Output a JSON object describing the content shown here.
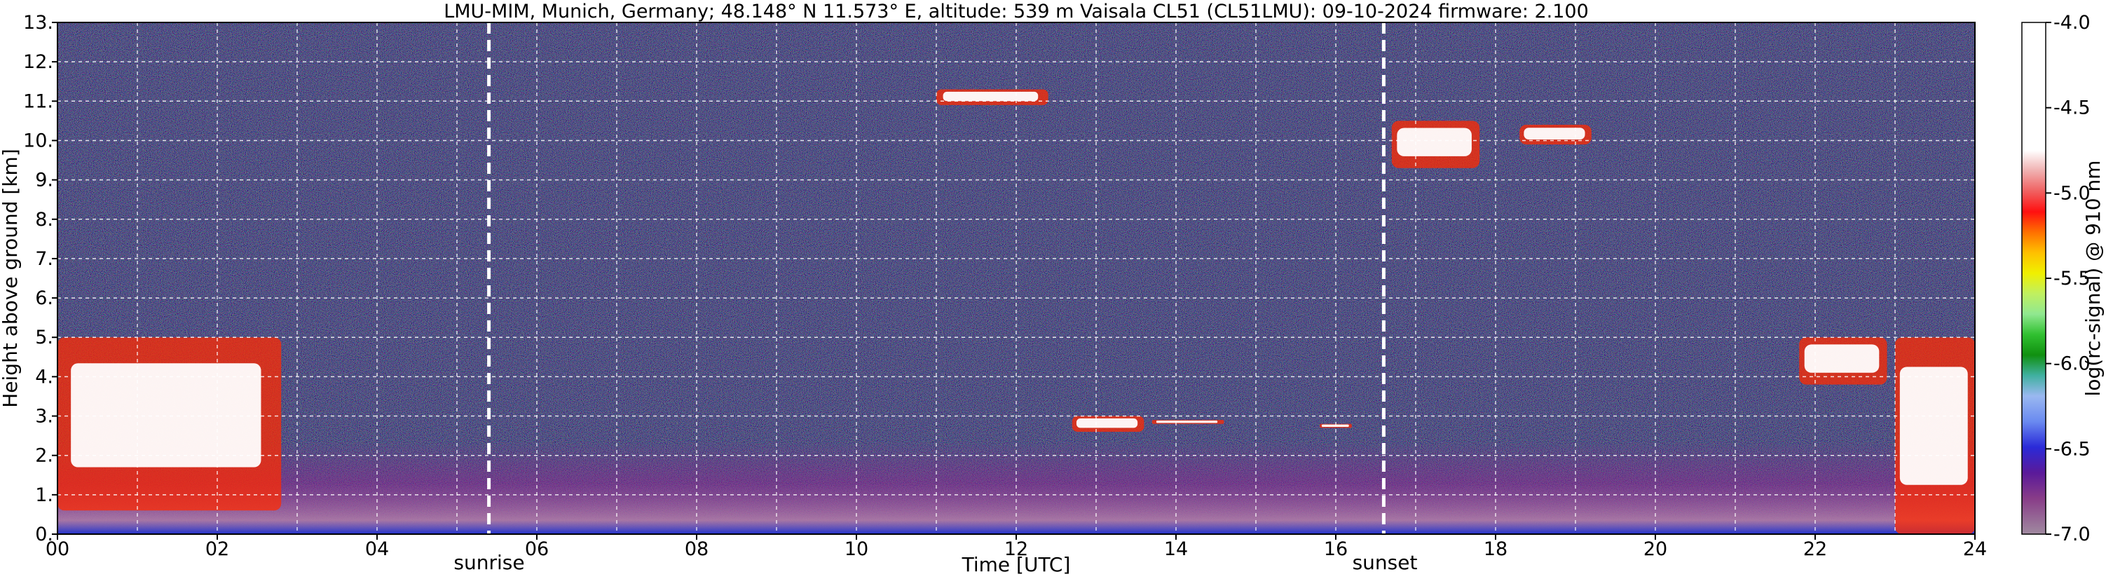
{
  "chart_data": {
    "type": "heatmap",
    "title": "LMU-MIM, Munich, Germany; 48.148° N 11.573° E, altitude: 539 m    Vaisala CL51 (CL51LMU): 09-10-2024    firmware: 2.100",
    "xlabel": "Time [UTC]",
    "ylabel": "Height above ground [km]",
    "xlim": [
      0,
      24
    ],
    "ylim": [
      0,
      13
    ],
    "x_ticks": [
      "00",
      "02",
      "04",
      "06",
      "08",
      "10",
      "12",
      "14",
      "16",
      "18",
      "20",
      "22",
      "24"
    ],
    "y_ticks": [
      "0.",
      "1.",
      "2.",
      "3.",
      "4.",
      "5.",
      "6.",
      "7.",
      "8.",
      "9.",
      "10.",
      "11.",
      "12.",
      "13."
    ],
    "grid": true,
    "colorbar": {
      "label": "log(rc-signal) @ 910 nm",
      "range": [
        -7.0,
        -4.0
      ],
      "ticks": [
        "-4.0",
        "-4.5",
        "-5.0",
        "-5.5",
        "-6.0",
        "-6.5",
        "-7.0"
      ]
    },
    "annotations": [
      {
        "text": "sunrise",
        "x": 5.4
      },
      {
        "text": "sunset",
        "x": 16.6
      }
    ],
    "cloud_features": [
      {
        "t0": 0.0,
        "t1": 2.8,
        "h0": 0.6,
        "h1": 5.0
      },
      {
        "t0": 11.0,
        "t1": 12.4,
        "h0": 10.9,
        "h1": 11.3
      },
      {
        "t0": 12.7,
        "t1": 13.6,
        "h0": 2.6,
        "h1": 3.0
      },
      {
        "t0": 13.7,
        "t1": 14.6,
        "h0": 2.8,
        "h1": 2.9
      },
      {
        "t0": 15.8,
        "t1": 16.2,
        "h0": 2.7,
        "h1": 2.8
      },
      {
        "t0": 16.7,
        "t1": 17.8,
        "h0": 9.3,
        "h1": 10.5
      },
      {
        "t0": 18.3,
        "t1": 19.2,
        "h0": 9.9,
        "h1": 10.4
      },
      {
        "t0": 21.8,
        "t1": 22.9,
        "h0": 3.8,
        "h1": 5.0
      },
      {
        "t0": 23.0,
        "t1": 24.0,
        "h0": 0.0,
        "h1": 5.0
      }
    ]
  },
  "colors": {
    "background_noise": "#1a1a5a",
    "boundary_layer": "#8a2b8f",
    "surface_layer": "#2233cc",
    "cloud": "#ffffff",
    "cloud_edge": "#ff2a00",
    "marker": "#ffffff"
  }
}
